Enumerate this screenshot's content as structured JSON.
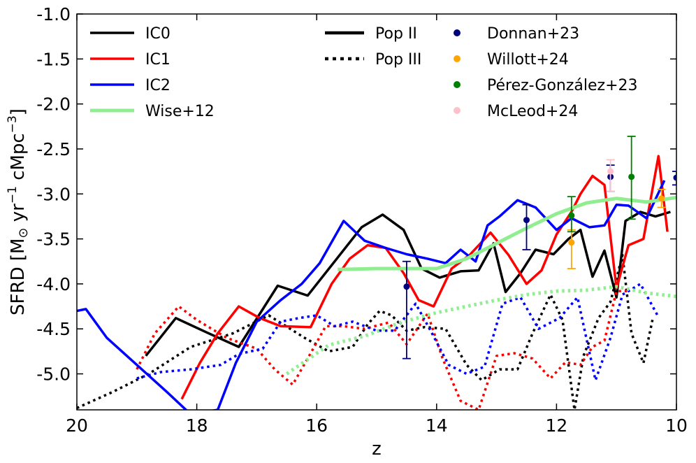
{
  "chart_data": {
    "type": "line",
    "xlabel": "z",
    "ylabel": "SFRD [M⊙ yr⁻¹ cMpc⁻³]",
    "xlim": [
      20,
      10
    ],
    "ylim": [
      -5.4,
      -1.0
    ],
    "x_ticks": [
      20,
      18,
      16,
      14,
      12,
      10
    ],
    "x_tick_labels": [
      "20",
      "18",
      "16",
      "14",
      "12",
      "10"
    ],
    "y_ticks": [
      -5.0,
      -4.5,
      -4.0,
      -3.5,
      -3.0,
      -2.5,
      -2.0,
      -1.5,
      -1.0
    ],
    "y_tick_labels": [
      "-5.0",
      "-4.5",
      "-4.0",
      "-3.5",
      "-3.0",
      "-2.5",
      "-2.0",
      "-1.5",
      "-1.0"
    ],
    "grid": false,
    "legend_placement": "top",
    "series": [
      {
        "name": "IC0",
        "population": "Pop II",
        "color": "#000000",
        "x": [
          18.85,
          18.35,
          17.8,
          17.3,
          16.65,
          16.15,
          15.7,
          15.25,
          14.9,
          14.55,
          14.25,
          13.95,
          13.6,
          13.3,
          13.05,
          12.85,
          12.6,
          12.35,
          12.05,
          11.8,
          11.6,
          11.4,
          11.2,
          11.0,
          10.85,
          10.6,
          10.35,
          10.1
        ],
        "y": [
          -4.8,
          -4.38,
          -4.55,
          -4.7,
          -4.02,
          -4.13,
          -3.75,
          -3.37,
          -3.23,
          -3.4,
          -3.83,
          -3.93,
          -3.86,
          -3.85,
          -3.55,
          -4.09,
          -3.88,
          -3.62,
          -3.67,
          -3.5,
          -3.4,
          -3.92,
          -3.63,
          -4.15,
          -3.3,
          -3.2,
          -3.25,
          -3.2
        ]
      },
      {
        "name": "IC0",
        "population": "Pop III",
        "color": "#000000",
        "x": [
          20.0,
          19.4,
          18.8,
          18.1,
          17.4,
          16.8,
          16.2,
          15.8,
          15.4,
          15.15,
          14.95,
          14.75,
          14.5,
          14.2,
          13.85,
          13.5,
          13.25,
          12.95,
          12.65,
          12.4,
          12.1,
          11.9,
          11.7,
          11.55,
          11.3,
          11.1,
          10.9,
          10.75,
          10.55,
          10.4
        ],
        "y": [
          -5.38,
          -5.2,
          -5.0,
          -4.7,
          -4.55,
          -4.35,
          -4.6,
          -4.75,
          -4.7,
          -4.45,
          -4.3,
          -4.35,
          -4.52,
          -4.48,
          -4.5,
          -4.9,
          -5.07,
          -4.95,
          -4.95,
          -4.55,
          -4.12,
          -4.4,
          -5.4,
          -4.8,
          -4.38,
          -4.2,
          -3.68,
          -4.55,
          -4.88,
          -4.4
        ]
      },
      {
        "name": "IC1",
        "population": "Pop II",
        "color": "#ff0000",
        "x": [
          18.25,
          17.95,
          17.65,
          17.3,
          16.95,
          16.6,
          16.1,
          15.75,
          15.45,
          15.15,
          14.85,
          14.55,
          14.3,
          14.05,
          13.75,
          13.45,
          13.1,
          12.8,
          12.5,
          12.25,
          12.0,
          11.75,
          11.6,
          11.4,
          11.2,
          11.0,
          10.8,
          10.55,
          10.3,
          10.15
        ],
        "y": [
          -5.28,
          -4.88,
          -4.55,
          -4.25,
          -4.38,
          -4.47,
          -4.48,
          -4.0,
          -3.72,
          -3.57,
          -3.6,
          -3.88,
          -4.18,
          -4.25,
          -3.83,
          -3.68,
          -3.43,
          -3.68,
          -4.0,
          -3.85,
          -3.45,
          -3.2,
          -3.0,
          -2.8,
          -2.9,
          -4.05,
          -3.57,
          -3.5,
          -2.58,
          -3.42
        ]
      },
      {
        "name": "IC1",
        "population": "Pop III",
        "color": "#ff0000",
        "x": [
          19.0,
          18.7,
          18.3,
          18.0,
          17.5,
          17.0,
          16.7,
          16.4,
          16.1,
          15.85,
          15.55,
          15.2,
          14.8,
          14.5,
          14.15,
          13.9,
          13.6,
          13.3,
          13.0,
          12.7,
          12.4,
          12.1,
          11.85,
          11.6,
          11.4,
          11.2,
          11.0,
          10.8
        ],
        "y": [
          -4.95,
          -4.55,
          -4.25,
          -4.4,
          -4.6,
          -4.72,
          -4.95,
          -5.12,
          -4.77,
          -4.47,
          -4.47,
          -4.5,
          -4.43,
          -4.67,
          -4.33,
          -4.83,
          -5.3,
          -5.4,
          -4.8,
          -4.77,
          -4.83,
          -5.05,
          -4.87,
          -4.9,
          -4.7,
          -4.63,
          -4.08,
          -4.08
        ]
      },
      {
        "name": "IC2",
        "population": "Pop II",
        "color": "#0000ff",
        "x": [
          20.0,
          19.85,
          19.5,
          19.0,
          18.5,
          18.1,
          17.65,
          17.35,
          17.0,
          16.6,
          16.25,
          15.95,
          15.55,
          15.2,
          14.85,
          14.5,
          14.15,
          13.85,
          13.6,
          13.35,
          13.15,
          12.95,
          12.65,
          12.35,
          12.0,
          11.75,
          11.45,
          11.2,
          11.0,
          10.8,
          10.5,
          10.2
        ],
        "y": [
          -4.3,
          -4.28,
          -4.6,
          -4.9,
          -5.2,
          -5.45,
          -5.4,
          -4.88,
          -4.42,
          -4.18,
          -4.0,
          -3.77,
          -3.3,
          -3.52,
          -3.6,
          -3.67,
          -3.72,
          -3.77,
          -3.62,
          -3.75,
          -3.35,
          -3.25,
          -3.07,
          -3.15,
          -3.4,
          -3.27,
          -3.37,
          -3.35,
          -3.12,
          -3.13,
          -3.27,
          -2.85
        ]
      },
      {
        "name": "IC2",
        "population": "Pop III",
        "color": "#0000ff",
        "x": [
          19.0,
          18.6,
          18.1,
          17.6,
          17.3,
          16.9,
          16.6,
          16.3,
          16.0,
          15.7,
          15.4,
          15.0,
          14.7,
          14.35,
          14.1,
          13.8,
          13.5,
          13.2,
          12.9,
          12.6,
          12.3,
          11.95,
          11.65,
          11.35,
          11.1,
          10.9,
          10.6,
          10.3
        ],
        "y": [
          -5.05,
          -4.98,
          -4.95,
          -4.9,
          -4.78,
          -4.72,
          -4.42,
          -4.38,
          -4.35,
          -4.47,
          -4.42,
          -4.52,
          -4.52,
          -4.22,
          -4.52,
          -4.9,
          -5.0,
          -4.92,
          -4.22,
          -4.15,
          -4.5,
          -4.38,
          -4.15,
          -5.07,
          -4.6,
          -4.12,
          -4.0,
          -4.37
        ]
      },
      {
        "name": "Wise+12",
        "population": "Pop II",
        "color": "#90ee90",
        "x": [
          15.65,
          15.0,
          14.5,
          14.0,
          13.5,
          13.0,
          12.5,
          12.0,
          11.5,
          11.0,
          10.5,
          10.0
        ],
        "y": [
          -3.84,
          -3.83,
          -3.83,
          -3.83,
          -3.72,
          -3.55,
          -3.38,
          -3.22,
          -3.1,
          -3.05,
          -3.09,
          -3.04
        ]
      },
      {
        "name": "Wise+12",
        "population": "Pop III",
        "color": "#90ee90",
        "x": [
          16.5,
          15.8,
          15.2,
          14.6,
          14.0,
          13.5,
          13.0,
          12.5,
          12.0,
          11.5,
          11.0,
          10.5,
          10.0
        ],
        "y": [
          -5.0,
          -4.68,
          -4.58,
          -4.43,
          -4.32,
          -4.25,
          -4.18,
          -4.12,
          -4.08,
          -4.07,
          -4.03,
          -4.1,
          -4.14
        ]
      }
    ],
    "observations": [
      {
        "name": "Donnan+23",
        "color": "#00007f",
        "points": [
          {
            "z": 14.5,
            "y": -4.03,
            "ylo": -4.83,
            "yhi": -3.75
          },
          {
            "z": 12.5,
            "y": -3.29,
            "ylo": -3.62,
            "yhi": -3.12
          },
          {
            "z": 11.1,
            "y": -2.81,
            "ylo": -2.97,
            "yhi": -2.68
          },
          {
            "z": 10.0,
            "y": -2.82,
            "ylo": -2.9,
            "yhi": -2.75
          }
        ]
      },
      {
        "name": "Willott+24",
        "color": "#ffa500",
        "points": [
          {
            "z": 11.75,
            "y": -3.54,
            "ylo": -3.83,
            "yhi": -3.4
          },
          {
            "z": 10.25,
            "y": -3.05,
            "ylo": -3.15,
            "yhi": -2.95
          }
        ]
      },
      {
        "name": "Pérez-González+23",
        "color": "#008000",
        "points": [
          {
            "z": 11.75,
            "y": -3.24,
            "ylo": -3.42,
            "yhi": -3.03
          },
          {
            "z": 10.75,
            "y": -2.81,
            "ylo": -3.28,
            "yhi": -2.36
          }
        ]
      },
      {
        "name": "McLeod+24",
        "color": "#ffc0cb",
        "points": [
          {
            "z": 11.1,
            "y": -2.75,
            "ylo": -2.97,
            "yhi": -2.62
          }
        ]
      }
    ],
    "legend": {
      "col1": [
        {
          "label": "IC0",
          "color": "#000000"
        },
        {
          "label": "IC1",
          "color": "#ff0000"
        },
        {
          "label": "IC2",
          "color": "#0000ff"
        },
        {
          "label": "Wise+12",
          "color": "#90ee90"
        }
      ],
      "col2": [
        {
          "label": "Pop II",
          "style": "solid",
          "color": "#000000"
        },
        {
          "label": "Pop III",
          "style": "dotted",
          "color": "#000000"
        }
      ],
      "col3": [
        {
          "label": "Donnan+23",
          "color": "#00007f"
        },
        {
          "label": "Willott+24",
          "color": "#ffa500"
        },
        {
          "label": "Pérez-González+23",
          "color": "#008000"
        },
        {
          "label": "McLeod+24",
          "color": "#ffc0cb"
        }
      ]
    }
  }
}
